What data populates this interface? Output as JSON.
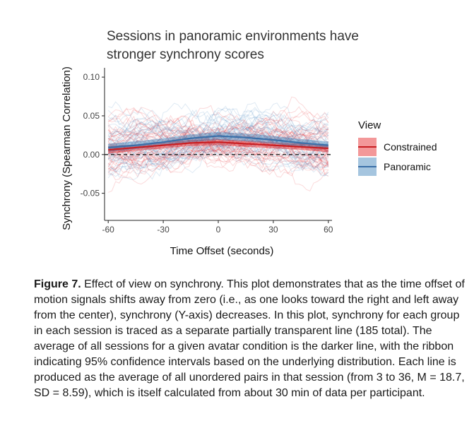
{
  "chart_data": {
    "type": "line",
    "title": "Sessions in panoramic environments have stronger synchrony scores",
    "title_lines": [
      "Sessions in panoramic environments have",
      "stronger synchrony scores"
    ],
    "xlabel": "Time Offset (seconds)",
    "ylabel": "Synchrony (Spearman Correlation)",
    "xlim": [
      -62,
      62
    ],
    "ylim": [
      -0.085,
      0.112
    ],
    "xticks": [
      -60,
      -30,
      0,
      30,
      60
    ],
    "xtick_labels": [
      "-60",
      "-30",
      "0",
      "30",
      "60"
    ],
    "yticks": [
      -0.05,
      0.0,
      0.05,
      0.1
    ],
    "ytick_labels": [
      "-0.05",
      "0.00",
      "0.05",
      "0.10"
    ],
    "reference_line_y": 0,
    "grid": false,
    "legend": {
      "title": "View",
      "position": "right",
      "entries": [
        "Constrained",
        "Panoramic"
      ]
    },
    "series": [
      {
        "name": "Constrained",
        "color": "#e41a1c",
        "x": [
          -60,
          -45,
          -30,
          -15,
          0,
          15,
          30,
          45,
          60
        ],
        "y": [
          0.006,
          0.009,
          0.012,
          0.015,
          0.016,
          0.014,
          0.012,
          0.01,
          0.008
        ],
        "ci_low": [
          0.001,
          0.005,
          0.008,
          0.011,
          0.012,
          0.01,
          0.008,
          0.006,
          0.003
        ],
        "ci_high": [
          0.011,
          0.013,
          0.016,
          0.019,
          0.02,
          0.018,
          0.016,
          0.014,
          0.013
        ]
      },
      {
        "name": "Panoramic",
        "color": "#377eb8",
        "x": [
          -60,
          -45,
          -30,
          -15,
          0,
          15,
          30,
          45,
          60
        ],
        "y": [
          0.009,
          0.012,
          0.016,
          0.021,
          0.024,
          0.022,
          0.019,
          0.015,
          0.012
        ],
        "ci_low": [
          0.004,
          0.007,
          0.011,
          0.016,
          0.019,
          0.017,
          0.014,
          0.01,
          0.007
        ],
        "ci_high": [
          0.014,
          0.017,
          0.021,
          0.026,
          0.029,
          0.027,
          0.024,
          0.02,
          0.017
        ]
      }
    ]
  },
  "caption": {
    "label": "Figure 7.",
    "text": " Effect of view on synchrony. This plot demonstrates that as the time offset of motion signals shifts away from zero (i.e., as one looks toward the right and left away from the center), synchrony (Y-axis) decreases. In this plot, synchrony for each group in each session is traced as a separate partially transparent line (185 total). The average of all sessions for a given avatar condition is the darker line, with the ribbon indicating 95% confidence intervals based on the underlying distribution. Each line is produced as the average of all unordered pairs in that session (from 3 to 36, M = 18.7, SD = 8.59), which is itself calculated from about 30 min of data per participant."
  }
}
